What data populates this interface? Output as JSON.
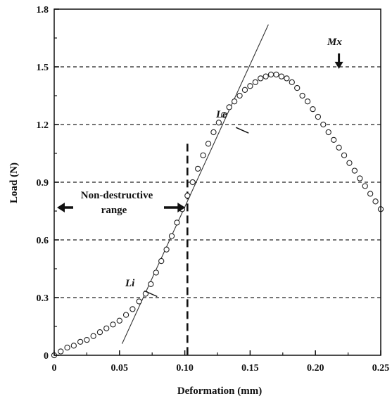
{
  "chart_data": {
    "type": "scatter",
    "title": "",
    "xlabel": "Deformation (mm)",
    "ylabel": "Load (N)",
    "xlim": [
      0,
      0.25
    ],
    "ylim": [
      0,
      1.8
    ],
    "x_ticks": [
      "0",
      "0.05",
      "0.10",
      "0.15",
      "0.20",
      "0.25"
    ],
    "y_ticks": [
      "0",
      "0.3",
      "0.6",
      "0.9",
      "1.2",
      "1.5",
      "1.8"
    ],
    "x_tick_values": [
      0,
      0.05,
      0.1,
      0.15,
      0.2,
      0.25
    ],
    "y_tick_values": [
      0,
      0.3,
      0.6,
      0.9,
      1.2,
      1.5,
      1.8
    ],
    "grid": "horizontal dashed at 0.3 to 1.5",
    "series": [
      {
        "marker": "open-circle",
        "x": [
          0.0,
          0.005,
          0.01,
          0.015,
          0.02,
          0.025,
          0.03,
          0.035,
          0.04,
          0.045,
          0.05,
          0.055,
          0.06,
          0.065,
          0.07,
          0.074,
          0.078,
          0.082,
          0.086,
          0.09,
          0.094,
          0.098,
          0.102,
          0.106,
          0.11,
          0.114,
          0.118,
          0.122,
          0.126,
          0.13,
          0.134,
          0.138,
          0.142,
          0.146,
          0.15,
          0.154,
          0.158,
          0.162,
          0.166,
          0.17,
          0.174,
          0.178,
          0.182,
          0.186,
          0.19,
          0.194,
          0.198,
          0.202,
          0.206,
          0.21,
          0.214,
          0.218,
          0.222,
          0.226,
          0.23,
          0.234,
          0.238,
          0.242,
          0.246,
          0.25
        ],
        "y": [
          0.0,
          0.02,
          0.04,
          0.05,
          0.07,
          0.08,
          0.1,
          0.12,
          0.14,
          0.16,
          0.18,
          0.21,
          0.24,
          0.28,
          0.32,
          0.37,
          0.43,
          0.49,
          0.55,
          0.62,
          0.69,
          0.76,
          0.83,
          0.9,
          0.97,
          1.04,
          1.1,
          1.16,
          1.21,
          1.25,
          1.29,
          1.32,
          1.35,
          1.38,
          1.4,
          1.42,
          1.44,
          1.45,
          1.46,
          1.46,
          1.45,
          1.44,
          1.42,
          1.39,
          1.35,
          1.32,
          1.28,
          1.24,
          1.2,
          1.16,
          1.12,
          1.08,
          1.04,
          1.0,
          0.96,
          0.92,
          0.88,
          0.84,
          0.8,
          0.76
        ]
      }
    ],
    "fit_line": {
      "from": [
        0.052,
        0.06
      ],
      "to": [
        0.164,
        1.72
      ]
    },
    "vertical_marker_x": 0.102,
    "annotations": {
      "li_label": "Li",
      "le_label": "Le",
      "mx_label": "Mx",
      "range_label_line1": "Non-destructive",
      "range_label_line2": "range"
    },
    "li_point": [
      0.074,
      0.32
    ],
    "le_point": [
      0.144,
      1.17
    ],
    "mx_point": [
      0.218,
      1.46
    ]
  }
}
